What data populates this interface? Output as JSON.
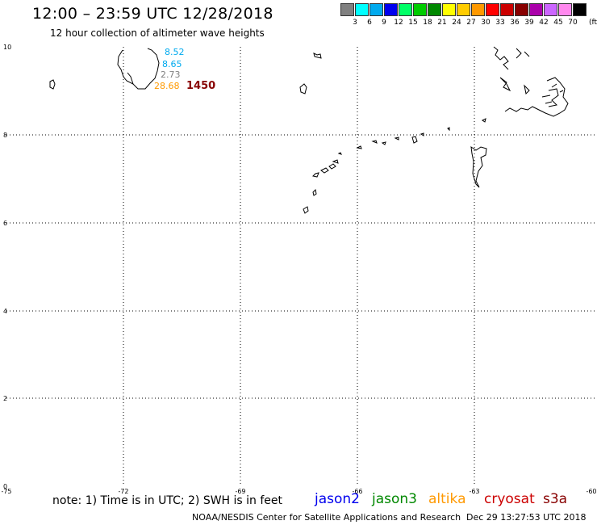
{
  "header": {
    "title": "12:00 – 23:59 UTC 12/28/2018",
    "subtitle": "12 hour collection of altimeter wave heights"
  },
  "scale": {
    "unit": "(ft)",
    "colors": [
      "#808080",
      "#00ffff",
      "#00aaee",
      "#0000ee",
      "#00ff66",
      "#00cc00",
      "#008800",
      "#ffff00",
      "#ffcc00",
      "#ff9900",
      "#ff0000",
      "#cc0000",
      "#880000",
      "#aa00aa",
      "#cc66ff",
      "#ff88ee",
      "#000000"
    ],
    "labels": [
      "3",
      "6",
      "9",
      "12",
      "15",
      "18",
      "21",
      "24",
      "27",
      "30",
      "33",
      "36",
      "39",
      "42",
      "45",
      "70"
    ]
  },
  "map": {
    "lat_labels": [
      "10",
      "8",
      "6",
      "4",
      "2",
      "0"
    ],
    "lon_labels": [
      "-75",
      "-72",
      "-69",
      "-66",
      "-63",
      "-60"
    ]
  },
  "observations": [
    {
      "value": "8.52",
      "color": "#00aaee"
    },
    {
      "value": "8.65",
      "color": "#00aaee"
    },
    {
      "value": "2.73",
      "color": "#808080"
    },
    {
      "value": "28.68",
      "color": "#ff9900"
    },
    {
      "value": "1450",
      "color": "#880000"
    }
  ],
  "footer": {
    "note": "note:  1) Time is in UTC;  2) SWH is in feet",
    "satellites": [
      {
        "name": "jason2",
        "color": "#0000ee"
      },
      {
        "name": "jason3",
        "color": "#008800"
      },
      {
        "name": "altika",
        "color": "#ff9900"
      },
      {
        "name": "cryosat",
        "color": "#cc0000"
      },
      {
        "name": "s3a",
        "color": "#880000"
      }
    ],
    "credit": "NOAA/NESDIS Center for Satellite Applications and Research",
    "timestamp": "Dec 29 13:27:53 UTC 2018"
  }
}
